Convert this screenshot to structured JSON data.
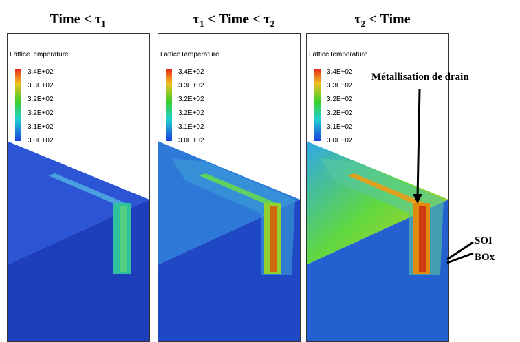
{
  "panels": [
    {
      "title": [
        {
          "text": "Time < τ"
        },
        {
          "text": "1",
          "sub": true
        }
      ]
    },
    {
      "title": [
        {
          "text": "τ"
        },
        {
          "text": "1",
          "sub": true
        },
        {
          "text": " < Time < τ"
        },
        {
          "text": "2",
          "sub": true
        }
      ]
    },
    {
      "title": [
        {
          "text": "τ"
        },
        {
          "text": "2",
          "sub": true
        },
        {
          "text": " < Time"
        }
      ]
    }
  ],
  "legend": {
    "title": "LatticeTemperature",
    "labels": [
      "3.4E+02",
      "3.3E+02",
      "3.2E+02",
      "3.2E+02",
      "3.1E+02",
      "3.0E+02"
    ]
  },
  "annotations": {
    "metal": "Métallisation de drain",
    "soi": "SOI",
    "box": "BOx"
  }
}
